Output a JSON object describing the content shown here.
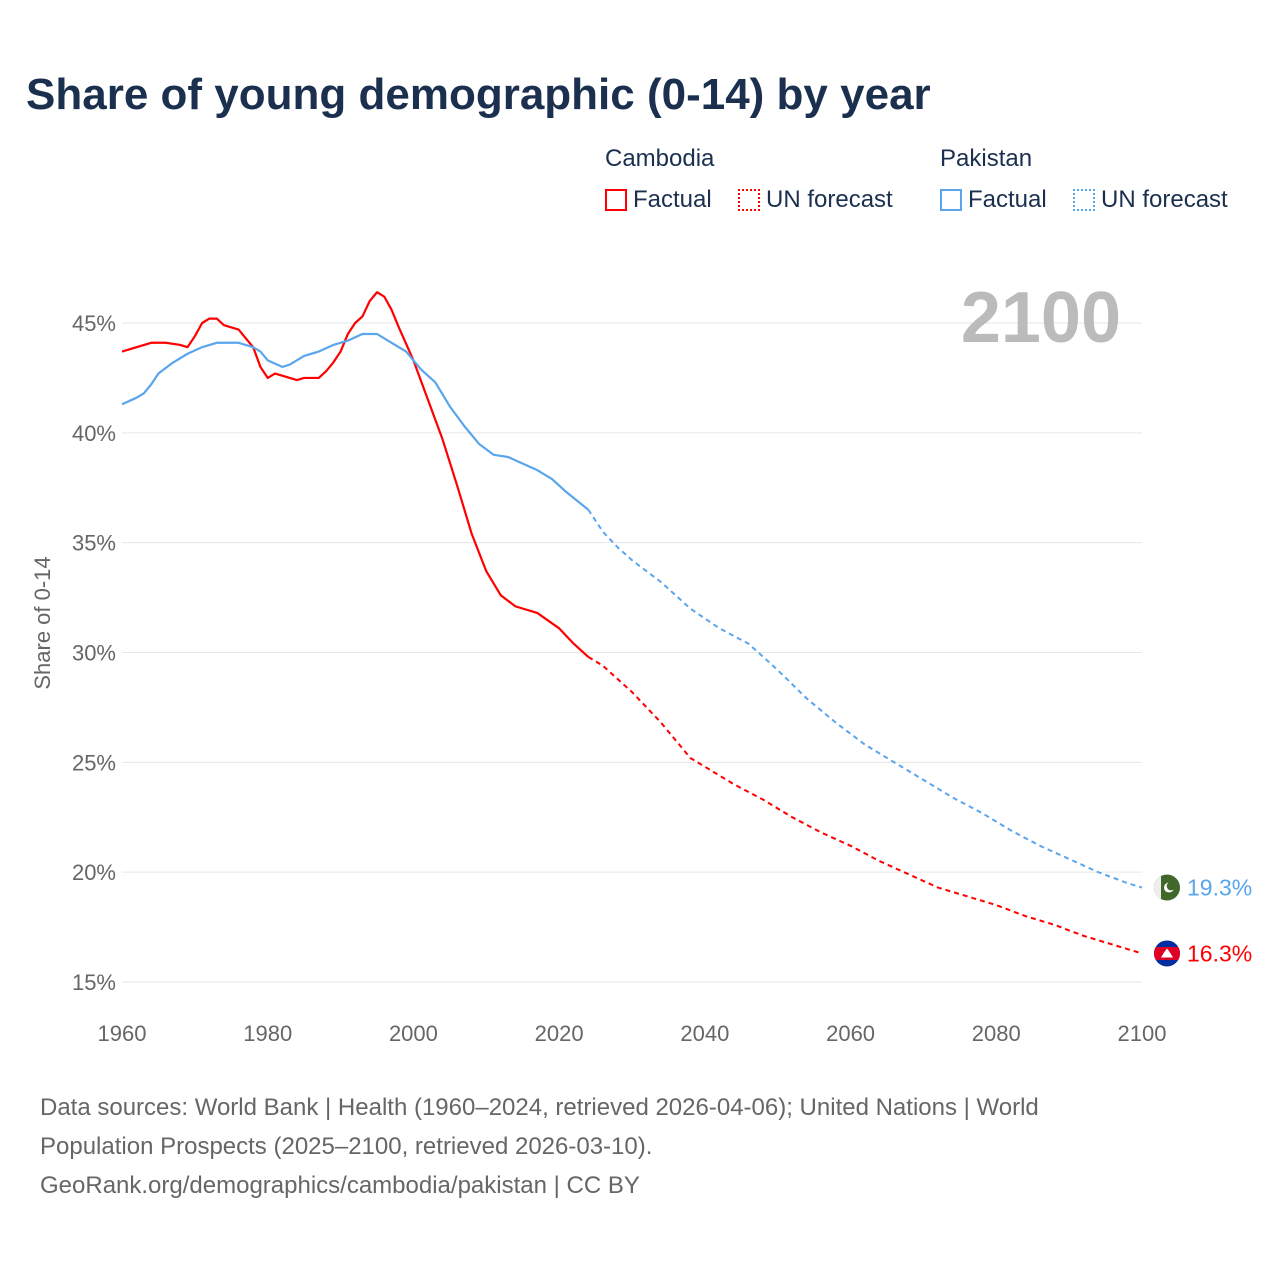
{
  "chart_data": {
    "type": "line",
    "title": "Share of young demographic (0-14) by year",
    "ylabel": "Share of 0-14",
    "xlabel": "",
    "xlim": [
      1960,
      2100
    ],
    "ylim": [
      15,
      45
    ],
    "x_ticks": [
      "1960",
      "1980",
      "2000",
      "2020",
      "2040",
      "2060",
      "2080",
      "2100"
    ],
    "y_ticks": [
      "15%",
      "20%",
      "25%",
      "30%",
      "35%",
      "40%",
      "45%"
    ],
    "year_label": "2100",
    "forecast_start": 2024,
    "legend": {
      "groups": [
        {
          "name": "Cambodia",
          "items": [
            "Factual",
            "UN forecast"
          ]
        },
        {
          "name": "Pakistan",
          "items": [
            "Factual",
            "UN forecast"
          ]
        }
      ]
    },
    "series": [
      {
        "name": "Cambodia",
        "color": "#ff0000",
        "end_label": "16.3%",
        "x": [
          1960,
          1962,
          1964,
          1966,
          1968,
          1969,
          1970,
          1971,
          1972,
          1973,
          1974,
          1976,
          1977,
          1978,
          1979,
          1980,
          1981,
          1982,
          1984,
          1985,
          1987,
          1988,
          1989,
          1990,
          1991,
          1992,
          1993,
          1994,
          1995,
          1996,
          1997,
          1998,
          2000,
          2002,
          2004,
          2006,
          2008,
          2010,
          2012,
          2014,
          2017,
          2020,
          2022,
          2024,
          2026,
          2030,
          2034,
          2038,
          2040,
          2044,
          2048,
          2052,
          2056,
          2060,
          2064,
          2068,
          2072,
          2076,
          2080,
          2084,
          2088,
          2092,
          2096,
          2100
        ],
        "y": [
          43.7,
          43.9,
          44.1,
          44.1,
          44.0,
          43.9,
          44.4,
          45.0,
          45.2,
          45.2,
          44.9,
          44.7,
          44.3,
          43.9,
          43.0,
          42.5,
          42.7,
          42.6,
          42.4,
          42.5,
          42.5,
          42.8,
          43.2,
          43.7,
          44.5,
          45.0,
          45.3,
          46.0,
          46.4,
          46.2,
          45.6,
          44.8,
          43.3,
          41.5,
          39.7,
          37.6,
          35.4,
          33.7,
          32.6,
          32.1,
          31.8,
          31.1,
          30.4,
          29.8,
          29.4,
          28.2,
          26.8,
          25.2,
          24.8,
          24.0,
          23.3,
          22.5,
          21.8,
          21.2,
          20.5,
          19.9,
          19.3,
          18.9,
          18.5,
          18.0,
          17.6,
          17.1,
          16.7,
          16.3
        ]
      },
      {
        "name": "Pakistan",
        "color": "#5aa5ec",
        "end_label": "19.3%",
        "x": [
          1960,
          1962,
          1963,
          1964,
          1965,
          1967,
          1969,
          1971,
          1973,
          1976,
          1978,
          1979,
          1980,
          1982,
          1983,
          1985,
          1987,
          1989,
          1991,
          1993,
          1995,
          1997,
          1999,
          2001,
          2003,
          2005,
          2007,
          2009,
          2011,
          2013,
          2015,
          2017,
          2019,
          2021,
          2024,
          2026,
          2028,
          2030,
          2034,
          2038,
          2042,
          2046,
          2050,
          2054,
          2058,
          2062,
          2066,
          2070,
          2074,
          2078,
          2082,
          2086,
          2090,
          2094,
          2098,
          2100
        ],
        "y": [
          41.3,
          41.6,
          41.8,
          42.2,
          42.7,
          43.2,
          43.6,
          43.9,
          44.1,
          44.1,
          43.9,
          43.7,
          43.3,
          43.0,
          43.1,
          43.5,
          43.7,
          44.0,
          44.2,
          44.5,
          44.5,
          44.1,
          43.7,
          42.9,
          42.3,
          41.2,
          40.3,
          39.5,
          39.0,
          38.9,
          38.6,
          38.3,
          37.9,
          37.3,
          36.5,
          35.5,
          34.8,
          34.2,
          33.2,
          32.0,
          31.1,
          30.4,
          29.2,
          27.9,
          26.8,
          25.8,
          25.0,
          24.2,
          23.4,
          22.7,
          21.9,
          21.2,
          20.6,
          20.0,
          19.5,
          19.3
        ]
      }
    ]
  },
  "footer": {
    "line1": "Data sources: World Bank | Health (1960–2024, retrieved 2026-04-06); United Nations | World",
    "line2": "Population Prospects (2025–2100, retrieved 2026-03-10).",
    "line3": "GeoRank.org/demographics/cambodia/pakistan | CC BY"
  }
}
